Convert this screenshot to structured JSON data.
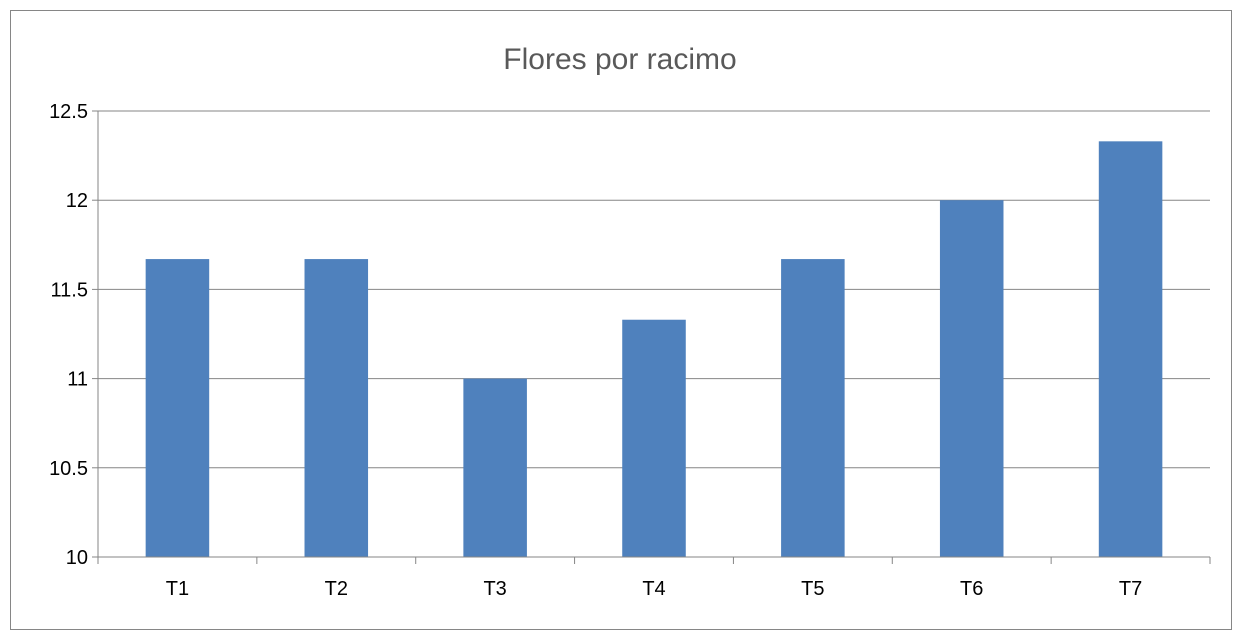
{
  "chart_data": {
    "type": "bar",
    "title": "Flores por racimo",
    "xlabel": "",
    "ylabel": "",
    "categories": [
      "T1",
      "T2",
      "T3",
      "T4",
      "T5",
      "T6",
      "T7"
    ],
    "values": [
      11.67,
      11.67,
      11.0,
      11.33,
      11.67,
      12.0,
      12.33
    ],
    "ylim": [
      10,
      12.5
    ],
    "yticks": [
      "10",
      "10.5",
      "11",
      "11.5",
      "12",
      "12.5"
    ],
    "grid": true,
    "legend": "none",
    "colors": {
      "bar": "#4F81BD",
      "grid": "#868686",
      "axis": "#868686"
    }
  }
}
